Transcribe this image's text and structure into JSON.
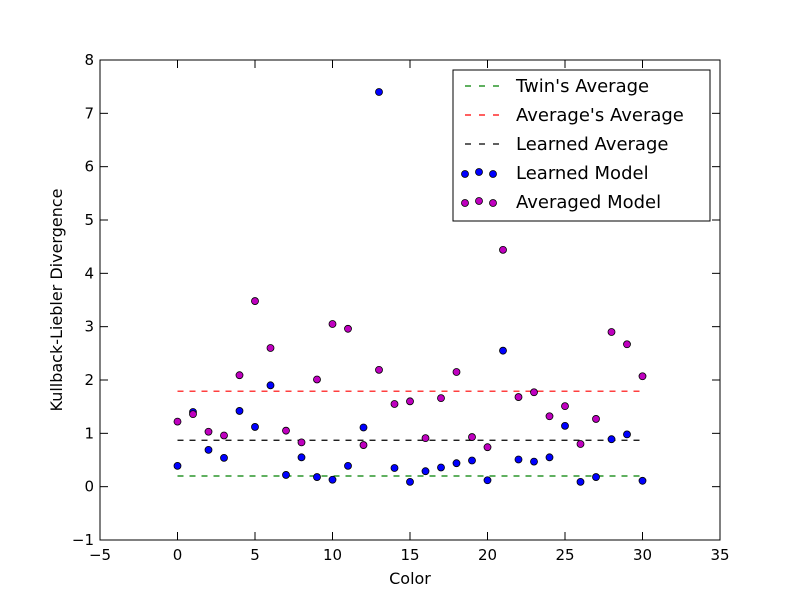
{
  "chart_data": {
    "type": "scatter",
    "title": "",
    "xlabel": "Color",
    "ylabel": "Kullback-Liebler Divergence",
    "xlim": [
      -5,
      35
    ],
    "ylim": [
      -1,
      8
    ],
    "xticks": [
      -5,
      0,
      5,
      10,
      15,
      20,
      25,
      30,
      35
    ],
    "xtick_labels": [
      "−5",
      "0",
      "5",
      "10",
      "15",
      "20",
      "25",
      "30",
      "35"
    ],
    "yticks": [
      -1,
      0,
      1,
      2,
      3,
      4,
      5,
      6,
      7,
      8
    ],
    "ytick_labels": [
      "−1",
      "0",
      "1",
      "2",
      "3",
      "4",
      "5",
      "6",
      "7",
      "8"
    ],
    "grid": false,
    "legend_position": "top-right",
    "hlines": [
      {
        "name": "Twin's Average",
        "y": 0.2,
        "x_range": [
          0,
          30
        ],
        "color": "#008000",
        "style": "dashed"
      },
      {
        "name": "Average's Average",
        "y": 1.79,
        "x_range": [
          0,
          30
        ],
        "color": "#ff0000",
        "style": "dashed"
      },
      {
        "name": "Learned Average",
        "y": 0.87,
        "x_range": [
          0,
          30
        ],
        "color": "#000000",
        "style": "dashed"
      }
    ],
    "series": [
      {
        "name": "Learned Model",
        "color": "#0000ff",
        "x": [
          0,
          1,
          2,
          3,
          4,
          5,
          6,
          7,
          8,
          9,
          10,
          11,
          12,
          13,
          14,
          15,
          16,
          17,
          18,
          19,
          20,
          21,
          22,
          23,
          24,
          25,
          26,
          27,
          28,
          29,
          30
        ],
        "y": [
          0.39,
          1.4,
          0.69,
          0.54,
          1.42,
          1.12,
          1.9,
          0.22,
          0.55,
          0.18,
          0.13,
          0.39,
          1.11,
          7.4,
          0.35,
          0.09,
          0.29,
          0.36,
          0.44,
          0.49,
          0.12,
          2.55,
          0.51,
          0.47,
          0.55,
          1.14,
          0.09,
          0.18,
          0.89,
          0.98,
          0.11
        ]
      },
      {
        "name": "Averaged Model",
        "color": "#bf00bf",
        "x": [
          0,
          1,
          2,
          3,
          4,
          5,
          6,
          7,
          8,
          9,
          10,
          11,
          12,
          13,
          14,
          15,
          16,
          17,
          18,
          19,
          20,
          21,
          22,
          23,
          24,
          25,
          26,
          27,
          28,
          29,
          30
        ],
        "y": [
          1.22,
          1.36,
          1.03,
          0.96,
          2.09,
          3.48,
          2.6,
          1.05,
          0.83,
          2.01,
          3.05,
          2.96,
          0.78,
          2.19,
          1.55,
          1.6,
          0.91,
          1.66,
          2.15,
          0.93,
          0.74,
          4.44,
          1.68,
          1.77,
          1.32,
          1.51,
          0.8,
          1.27,
          2.9,
          2.67,
          2.07
        ]
      }
    ]
  }
}
